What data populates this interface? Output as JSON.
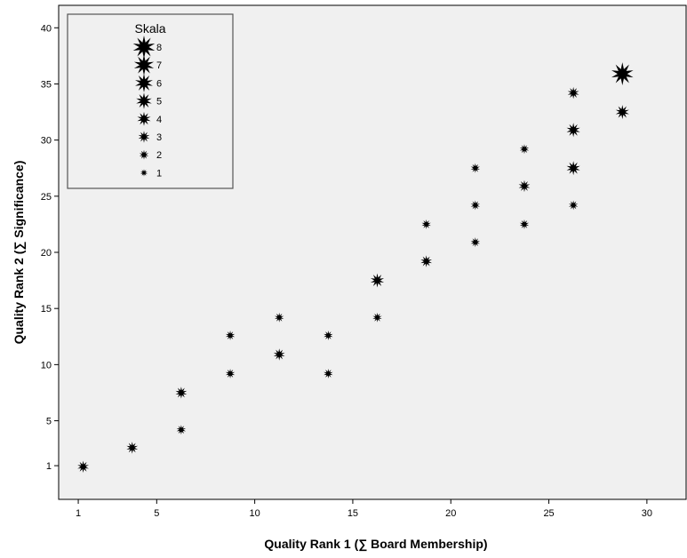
{
  "chart_data": {
    "type": "scatter",
    "xlabel": "Quality Rank 1 (∑ Board Membership)",
    "ylabel": "Quality Rank 2 (∑ Significance)",
    "xlim": [
      0,
      32
    ],
    "ylim": [
      -2,
      42
    ],
    "xticks": [
      1,
      5,
      10,
      15,
      20,
      25,
      30
    ],
    "yticks": [
      1,
      5,
      10,
      15,
      20,
      25,
      30,
      35,
      40
    ],
    "grid": false,
    "plot_background": "#f0f0f0",
    "marker_color": "#000000",
    "marker": "star-burst",
    "legend": {
      "title": "Skala",
      "placement": "top-left",
      "entries": [
        "8",
        "7",
        "6",
        "5",
        "4",
        "3",
        "2",
        "1"
      ]
    },
    "points": [
      {
        "x": 1.25,
        "y": 0.9,
        "size": 3
      },
      {
        "x": 3.75,
        "y": 2.6,
        "size": 3
      },
      {
        "x": 6.25,
        "y": 4.2,
        "size": 2
      },
      {
        "x": 6.25,
        "y": 7.5,
        "size": 3
      },
      {
        "x": 8.75,
        "y": 9.2,
        "size": 2
      },
      {
        "x": 8.75,
        "y": 12.6,
        "size": 2
      },
      {
        "x": 11.25,
        "y": 10.9,
        "size": 3
      },
      {
        "x": 11.25,
        "y": 14.2,
        "size": 2
      },
      {
        "x": 13.75,
        "y": 9.2,
        "size": 2
      },
      {
        "x": 13.75,
        "y": 12.6,
        "size": 2
      },
      {
        "x": 16.25,
        "y": 14.2,
        "size": 2
      },
      {
        "x": 16.25,
        "y": 17.5,
        "size": 4
      },
      {
        "x": 18.75,
        "y": 19.2,
        "size": 3
      },
      {
        "x": 18.75,
        "y": 22.5,
        "size": 2
      },
      {
        "x": 21.25,
        "y": 20.9,
        "size": 2
      },
      {
        "x": 21.25,
        "y": 24.2,
        "size": 2
      },
      {
        "x": 21.25,
        "y": 27.5,
        "size": 2
      },
      {
        "x": 23.75,
        "y": 22.5,
        "size": 2
      },
      {
        "x": 23.75,
        "y": 25.9,
        "size": 3
      },
      {
        "x": 23.75,
        "y": 29.2,
        "size": 2
      },
      {
        "x": 26.25,
        "y": 24.2,
        "size": 2
      },
      {
        "x": 26.25,
        "y": 27.5,
        "size": 4
      },
      {
        "x": 26.25,
        "y": 30.9,
        "size": 4
      },
      {
        "x": 26.25,
        "y": 34.2,
        "size": 3
      },
      {
        "x": 28.75,
        "y": 32.5,
        "size": 4
      },
      {
        "x": 28.75,
        "y": 35.9,
        "size": 8
      }
    ]
  }
}
